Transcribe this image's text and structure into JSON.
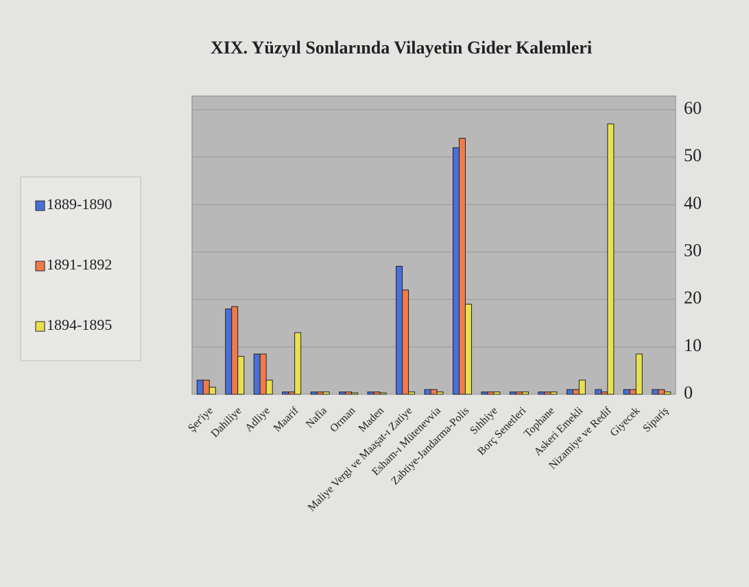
{
  "chart_data": {
    "type": "bar",
    "title": "XIX. Yüzyıl Sonlarında Vilayetin Gider Kalemleri",
    "categories": [
      "Şer'iye",
      "Dahiliye",
      "Adliye",
      "Maarif",
      "Nafia",
      "Orman",
      "Maden",
      "Maliye Vergi ve Maaşat-ı Zatiye",
      "Esham-ı Mütenevvia",
      "Zabtiye-Jandarma-Polis",
      "Sıhhiye",
      "Borç Senetleri",
      "Tophane",
      "Askeri Emekli",
      "Nizamiye ve Redif",
      "Giyecek",
      "Sipariş"
    ],
    "series": [
      {
        "name": "1889-1890",
        "color": "#4a6fd8",
        "values": [
          3,
          18,
          8.5,
          0.5,
          0.5,
          0.5,
          0.5,
          27,
          1,
          52,
          0.5,
          0.5,
          0.5,
          1,
          1,
          1,
          1
        ]
      },
      {
        "name": "1891-1892",
        "color": "#f07a4a",
        "values": [
          3,
          18.5,
          8.5,
          0.5,
          0.5,
          0.5,
          0.5,
          22,
          1,
          54,
          0.5,
          0.5,
          0.5,
          1,
          0.5,
          1,
          1
        ]
      },
      {
        "name": "1894-1895",
        "color": "#e8e050",
        "values": [
          1.5,
          8,
          3,
          13,
          0.5,
          0.3,
          0.3,
          0.5,
          0.5,
          19,
          0.5,
          0.5,
          0.5,
          3,
          57,
          8.5,
          0.5
        ]
      }
    ],
    "ylim": [
      0,
      60
    ],
    "yticks": [
      0,
      10,
      20,
      30,
      40,
      50,
      60
    ],
    "grid": true,
    "legend": "left"
  }
}
